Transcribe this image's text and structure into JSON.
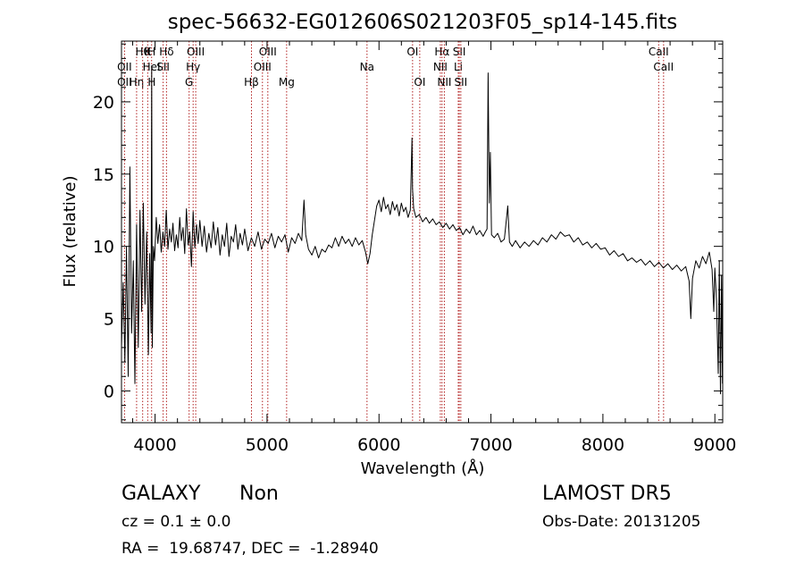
{
  "chart_data": {
    "type": "line",
    "title": "spec-56632-EG012606S021203F05_sp14-145.fits",
    "xlabel": "Wavelength (Å)",
    "ylabel": "Flux (relative)",
    "xlim": [
      3700,
      9070
    ],
    "ylim": [
      -2.2,
      24.2
    ],
    "xticks": [
      4000,
      5000,
      6000,
      7000,
      8000,
      9000
    ],
    "yticks": [
      0,
      5,
      10,
      15,
      20
    ],
    "series": [
      {
        "points": [
          [
            3700,
            3.0
          ],
          [
            3715,
            7.5
          ],
          [
            3730,
            2.0
          ],
          [
            3745,
            10.0
          ],
          [
            3760,
            1.0
          ],
          [
            3775,
            15.5
          ],
          [
            3790,
            4.0
          ],
          [
            3805,
            9.0
          ],
          [
            3820,
            0.5
          ],
          [
            3835,
            11.5
          ],
          [
            3850,
            3.0
          ],
          [
            3865,
            12.5
          ],
          [
            3880,
            5.5
          ],
          [
            3895,
            13.0
          ],
          [
            3910,
            6.0
          ],
          [
            3925,
            11.0
          ],
          [
            3940,
            2.5
          ],
          [
            3952,
            9.5
          ],
          [
            3964,
            4.0
          ],
          [
            3970,
            22.5
          ],
          [
            3975,
            3.0
          ],
          [
            3985,
            10.0
          ],
          [
            3995,
            9.0
          ],
          [
            4010,
            12.0
          ],
          [
            4025,
            10.2
          ],
          [
            4040,
            11.5
          ],
          [
            4055,
            9.6
          ],
          [
            4070,
            11.0
          ],
          [
            4085,
            10.0
          ],
          [
            4100,
            12.5
          ],
          [
            4115,
            9.8
          ],
          [
            4130,
            11.2
          ],
          [
            4145,
            10.3
          ],
          [
            4160,
            11.6
          ],
          [
            4175,
            9.7
          ],
          [
            4190,
            10.8
          ],
          [
            4205,
            9.9
          ],
          [
            4220,
            12.0
          ],
          [
            4235,
            10.4
          ],
          [
            4250,
            11.3
          ],
          [
            4265,
            9.5
          ],
          [
            4280,
            12.6
          ],
          [
            4295,
            10.1
          ],
          [
            4310,
            11.0
          ],
          [
            4325,
            8.6
          ],
          [
            4340,
            12.4
          ],
          [
            4355,
            9.9
          ],
          [
            4370,
            11.5
          ],
          [
            4385,
            10.2
          ],
          [
            4400,
            11.8
          ],
          [
            4420,
            10.0
          ],
          [
            4440,
            11.4
          ],
          [
            4460,
            9.6
          ],
          [
            4480,
            10.9
          ],
          [
            4500,
            9.9
          ],
          [
            4520,
            11.7
          ],
          [
            4540,
            10.1
          ],
          [
            4560,
            11.3
          ],
          [
            4580,
            9.4
          ],
          [
            4600,
            10.8
          ],
          [
            4620,
            10.0
          ],
          [
            4640,
            11.6
          ],
          [
            4660,
            9.3
          ],
          [
            4680,
            10.7
          ],
          [
            4700,
            10.3
          ],
          [
            4720,
            11.5
          ],
          [
            4740,
            9.8
          ],
          [
            4760,
            10.9
          ],
          [
            4780,
            10.1
          ],
          [
            4800,
            11.2
          ],
          [
            4830,
            9.7
          ],
          [
            4860,
            10.6
          ],
          [
            4890,
            10.0
          ],
          [
            4920,
            11.0
          ],
          [
            4950,
            9.8
          ],
          [
            4980,
            10.5
          ],
          [
            5010,
            10.2
          ],
          [
            5040,
            10.9
          ],
          [
            5070,
            9.9
          ],
          [
            5100,
            10.7
          ],
          [
            5130,
            10.3
          ],
          [
            5160,
            10.8
          ],
          [
            5190,
            9.6
          ],
          [
            5220,
            10.6
          ],
          [
            5250,
            10.2
          ],
          [
            5280,
            10.9
          ],
          [
            5310,
            10.4
          ],
          [
            5330,
            13.2
          ],
          [
            5345,
            10.8
          ],
          [
            5370,
            9.8
          ],
          [
            5400,
            9.4
          ],
          [
            5430,
            10.0
          ],
          [
            5460,
            9.2
          ],
          [
            5490,
            9.8
          ],
          [
            5520,
            9.6
          ],
          [
            5550,
            10.1
          ],
          [
            5580,
            9.9
          ],
          [
            5610,
            10.6
          ],
          [
            5640,
            10.0
          ],
          [
            5670,
            10.7
          ],
          [
            5700,
            10.2
          ],
          [
            5730,
            10.5
          ],
          [
            5760,
            10.0
          ],
          [
            5790,
            10.6
          ],
          [
            5820,
            10.1
          ],
          [
            5850,
            10.4
          ],
          [
            5880,
            9.6
          ],
          [
            5900,
            8.8
          ],
          [
            5920,
            9.5
          ],
          [
            5940,
            10.8
          ],
          [
            5960,
            11.8
          ],
          [
            5980,
            12.8
          ],
          [
            6000,
            13.2
          ],
          [
            6020,
            12.4
          ],
          [
            6040,
            13.4
          ],
          [
            6060,
            12.6
          ],
          [
            6080,
            12.9
          ],
          [
            6100,
            12.2
          ],
          [
            6120,
            13.1
          ],
          [
            6140,
            12.5
          ],
          [
            6160,
            12.9
          ],
          [
            6180,
            12.1
          ],
          [
            6200,
            13.0
          ],
          [
            6220,
            12.4
          ],
          [
            6240,
            12.7
          ],
          [
            6260,
            12.0
          ],
          [
            6280,
            12.5
          ],
          [
            6295,
            17.5
          ],
          [
            6300,
            14.0
          ],
          [
            6310,
            12.6
          ],
          [
            6330,
            12.0
          ],
          [
            6360,
            12.2
          ],
          [
            6390,
            11.7
          ],
          [
            6420,
            12.0
          ],
          [
            6450,
            11.6
          ],
          [
            6480,
            11.9
          ],
          [
            6510,
            11.5
          ],
          [
            6540,
            11.7
          ],
          [
            6570,
            11.3
          ],
          [
            6600,
            11.6
          ],
          [
            6630,
            11.2
          ],
          [
            6660,
            11.5
          ],
          [
            6690,
            11.1
          ],
          [
            6720,
            11.3
          ],
          [
            6750,
            10.8
          ],
          [
            6780,
            11.2
          ],
          [
            6810,
            10.9
          ],
          [
            6840,
            11.4
          ],
          [
            6870,
            10.8
          ],
          [
            6900,
            11.1
          ],
          [
            6930,
            10.7
          ],
          [
            6950,
            11.0
          ],
          [
            6965,
            11.2
          ],
          [
            6975,
            22.0
          ],
          [
            6985,
            13.0
          ],
          [
            6995,
            16.5
          ],
          [
            7005,
            10.8
          ],
          [
            7030,
            10.6
          ],
          [
            7060,
            10.9
          ],
          [
            7090,
            10.3
          ],
          [
            7120,
            10.5
          ],
          [
            7150,
            12.8
          ],
          [
            7165,
            10.3
          ],
          [
            7190,
            10.0
          ],
          [
            7220,
            10.4
          ],
          [
            7260,
            9.9
          ],
          [
            7300,
            10.3
          ],
          [
            7340,
            10.0
          ],
          [
            7380,
            10.4
          ],
          [
            7420,
            10.1
          ],
          [
            7460,
            10.6
          ],
          [
            7500,
            10.3
          ],
          [
            7540,
            10.8
          ],
          [
            7580,
            10.5
          ],
          [
            7620,
            11.0
          ],
          [
            7660,
            10.7
          ],
          [
            7700,
            10.8
          ],
          [
            7740,
            10.3
          ],
          [
            7780,
            10.6
          ],
          [
            7820,
            10.1
          ],
          [
            7860,
            10.3
          ],
          [
            7900,
            9.9
          ],
          [
            7940,
            10.2
          ],
          [
            7980,
            9.8
          ],
          [
            8020,
            9.9
          ],
          [
            8060,
            9.4
          ],
          [
            8100,
            9.7
          ],
          [
            8140,
            9.3
          ],
          [
            8180,
            9.5
          ],
          [
            8220,
            9.0
          ],
          [
            8260,
            9.2
          ],
          [
            8300,
            8.9
          ],
          [
            8340,
            9.1
          ],
          [
            8380,
            8.7
          ],
          [
            8420,
            9.0
          ],
          [
            8460,
            8.6
          ],
          [
            8500,
            8.9
          ],
          [
            8540,
            8.5
          ],
          [
            8580,
            8.8
          ],
          [
            8620,
            8.4
          ],
          [
            8660,
            8.7
          ],
          [
            8700,
            8.3
          ],
          [
            8740,
            8.6
          ],
          [
            8770,
            7.6
          ],
          [
            8785,
            5.0
          ],
          [
            8800,
            7.8
          ],
          [
            8830,
            9.0
          ],
          [
            8860,
            8.5
          ],
          [
            8890,
            9.3
          ],
          [
            8920,
            8.8
          ],
          [
            8950,
            9.6
          ],
          [
            8975,
            8.4
          ],
          [
            8990,
            5.5
          ],
          [
            9000,
            8.5
          ],
          [
            9015,
            6.2
          ],
          [
            9030,
            1.2
          ],
          [
            9040,
            9.0
          ],
          [
            9050,
            -0.2
          ],
          [
            9060,
            8.0
          ],
          [
            9068,
            0.5
          ]
        ]
      }
    ],
    "lines": [
      {
        "w": 3727,
        "row": 1,
        "label": "OII"
      },
      {
        "w": 3727,
        "row": 2,
        "label": "OII"
      },
      {
        "w": 3835,
        "row": 2,
        "label": "Hη"
      },
      {
        "w": 3889,
        "row": 0,
        "label": "Hθ"
      },
      {
        "w": 3934,
        "row": 0,
        "label": "K"
      },
      {
        "w": 3969,
        "row": 0,
        "label": "H"
      },
      {
        "w": 3968,
        "row": 1,
        "label": "HeI"
      },
      {
        "w": 3970,
        "row": 2,
        "label": "H"
      },
      {
        "w": 4102,
        "row": 0,
        "label": "Hδ"
      },
      {
        "w": 4072,
        "row": 1,
        "label": "SII"
      },
      {
        "w": 4304,
        "row": 2,
        "label": "G"
      },
      {
        "w": 4340,
        "row": 1,
        "label": "Hγ"
      },
      {
        "w": 4363,
        "row": 0,
        "label": "OIII"
      },
      {
        "w": 4861,
        "row": 2,
        "label": "Hβ"
      },
      {
        "w": 4959,
        "row": 1,
        "label": "OIII"
      },
      {
        "w": 5007,
        "row": 0,
        "label": "OIII"
      },
      {
        "w": 5175,
        "row": 2,
        "label": "Mg"
      },
      {
        "w": 5893,
        "row": 1,
        "label": "Na"
      },
      {
        "w": 6300,
        "row": 0,
        "label": "OI"
      },
      {
        "w": 6364,
        "row": 2,
        "label": "OI"
      },
      {
        "w": 6563,
        "row": 0,
        "label": "Hα"
      },
      {
        "w": 6548,
        "row": 1,
        "label": "NII"
      },
      {
        "w": 6584,
        "row": 2,
        "label": "NII"
      },
      {
        "w": 6717,
        "row": 0,
        "label": "SII"
      },
      {
        "w": 6708,
        "row": 1,
        "label": "Li"
      },
      {
        "w": 6731,
        "row": 2,
        "label": "SII"
      },
      {
        "w": 8498,
        "row": 0,
        "label": "CaII"
      },
      {
        "w": 8542,
        "row": 1,
        "label": "CaII"
      }
    ],
    "grid": false,
    "legend": "none"
  },
  "info": {
    "class": "GALAXY",
    "subclass": "Non",
    "survey": "LAMOST DR5",
    "cz": "cz = 0.1 ± 0.0",
    "obsdate": "Obs-Date: 20131205",
    "radec": "RA =  19.68747, DEC =  -1.28940"
  },
  "colors": {
    "spectrum": "#000000",
    "lines": "#b22222"
  }
}
